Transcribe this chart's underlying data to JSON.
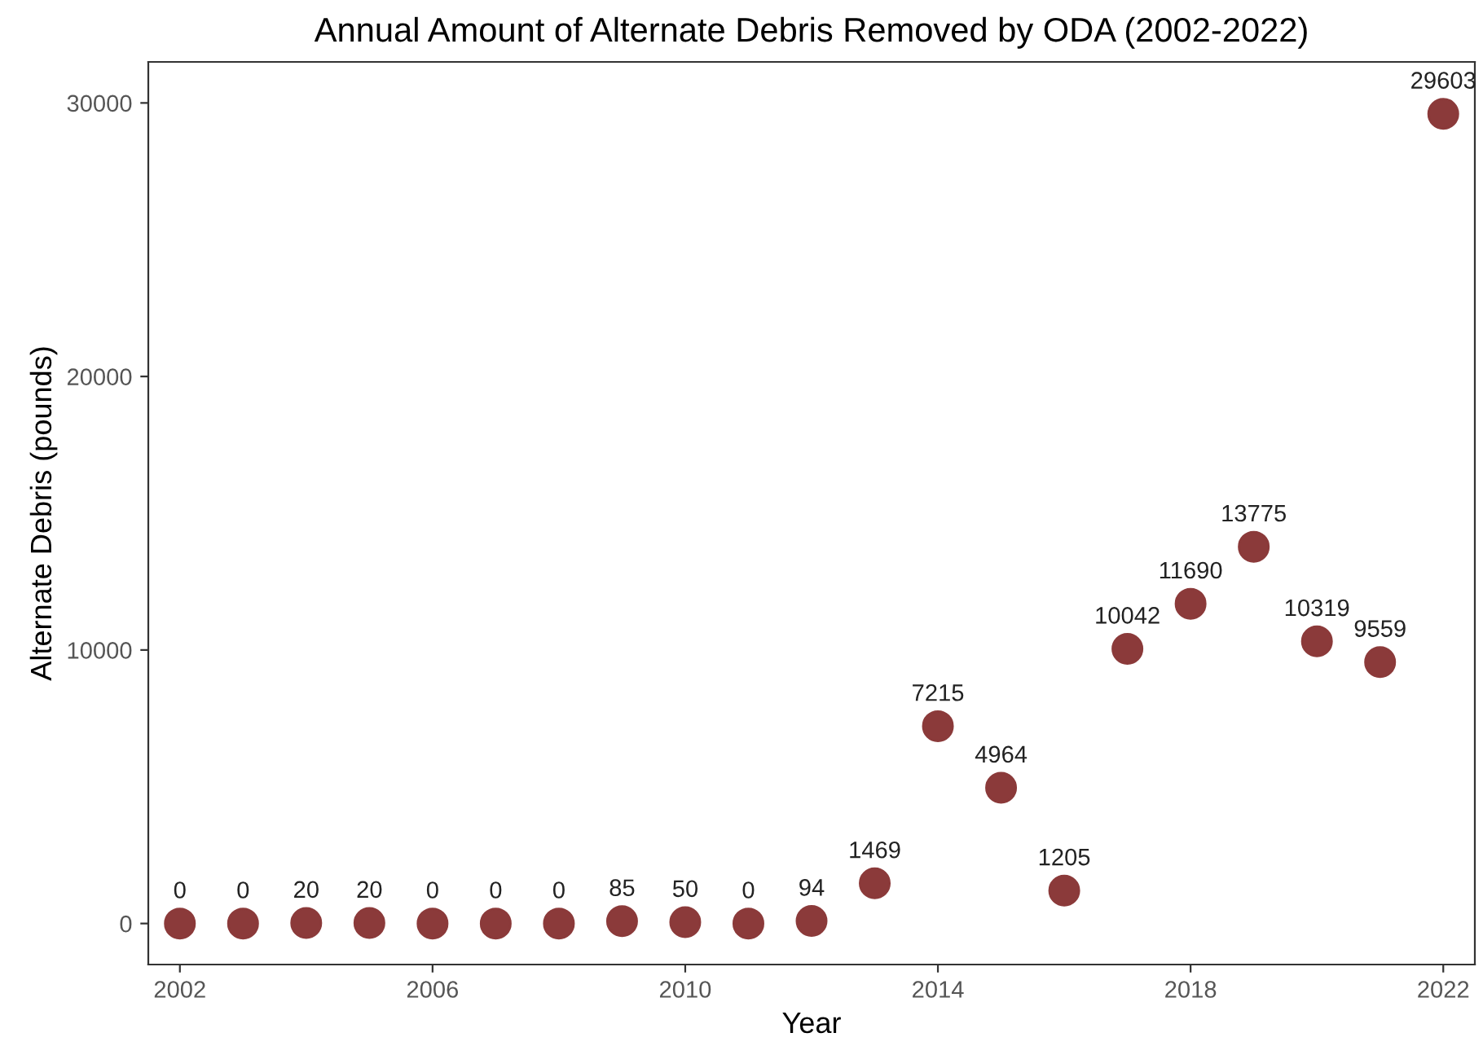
{
  "chart_data": {
    "type": "scatter",
    "title": "Annual Amount of Alternate Debris Removed by ODA (2002-2022)",
    "xlabel": "Year",
    "ylabel": "Alternate Debris (pounds)",
    "x": [
      2002,
      2003,
      2004,
      2005,
      2006,
      2007,
      2008,
      2009,
      2010,
      2011,
      2012,
      2013,
      2014,
      2015,
      2016,
      2017,
      2018,
      2019,
      2020,
      2021,
      2022
    ],
    "values": [
      0,
      0,
      20,
      20,
      0,
      0,
      0,
      85,
      50,
      0,
      94,
      1469,
      7215,
      4964,
      1205,
      10042,
      11690,
      13775,
      10319,
      9559,
      29603
    ],
    "color": "#8b3a3a",
    "marker": "circle",
    "data_labels": true,
    "xlim": [
      2001.5,
      2022.5
    ],
    "xticks": [
      2002,
      2006,
      2010,
      2014,
      2018,
      2022
    ],
    "ylim": [
      -1500,
      31500
    ],
    "yticks": [
      0,
      10000,
      20000,
      30000
    ],
    "grid": false,
    "legend": false
  }
}
